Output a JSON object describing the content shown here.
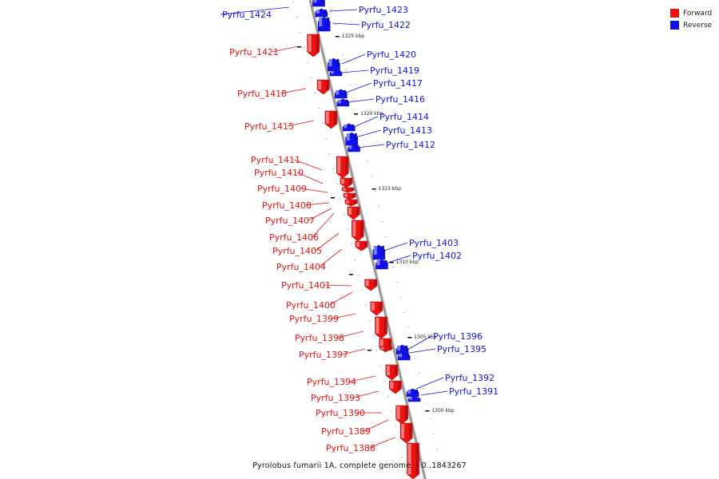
{
  "colors": {
    "forward": "#ee1111",
    "reverse": "#1111ee",
    "backbone": "#999999",
    "tick": "#000000"
  },
  "legend": [
    {
      "label": "Forward",
      "color": "#ee1111"
    },
    {
      "label": "Reverse",
      "color": "#1111ee"
    }
  ],
  "caption": "Pyrolobus fumarii 1A, complete genome. - 0..1843267",
  "kbp_markers": [
    "1325 kbp",
    "1320 kbp",
    "1315 kbp",
    "1310 kbp",
    "1305 kbp",
    "1300 kbp"
  ],
  "genes": [
    {
      "label": "Pyrfu_1424",
      "strand": "reverse"
    },
    {
      "label": "Pyrfu_1423",
      "strand": "reverse"
    },
    {
      "label": "Pyrfu_1422",
      "strand": "reverse"
    },
    {
      "label": "Pyrfu_1421",
      "strand": "forward"
    },
    {
      "label": "Pyrfu_1420",
      "strand": "reverse"
    },
    {
      "label": "Pyrfu_1419",
      "strand": "reverse"
    },
    {
      "label": "Pyrfu_1418",
      "strand": "forward"
    },
    {
      "label": "Pyrfu_1417",
      "strand": "reverse"
    },
    {
      "label": "Pyrfu_1416",
      "strand": "reverse"
    },
    {
      "label": "Pyrfu_1415",
      "strand": "forward"
    },
    {
      "label": "Pyrfu_1414",
      "strand": "reverse"
    },
    {
      "label": "Pyrfu_1413",
      "strand": "reverse"
    },
    {
      "label": "Pyrfu_1412",
      "strand": "reverse"
    },
    {
      "label": "Pyrfu_1411",
      "strand": "forward"
    },
    {
      "label": "Pyrfu_1410",
      "strand": "forward"
    },
    {
      "label": "Pyrfu_1409",
      "strand": "forward"
    },
    {
      "label": "Pyrfu_1408",
      "strand": "forward"
    },
    {
      "label": "Pyrfu_1407",
      "strand": "forward"
    },
    {
      "label": "Pyrfu_1406",
      "strand": "forward"
    },
    {
      "label": "Pyrfu_1405",
      "strand": "forward"
    },
    {
      "label": "Pyrfu_1404",
      "strand": "forward"
    },
    {
      "label": "Pyrfu_1403",
      "strand": "reverse"
    },
    {
      "label": "Pyrfu_1402",
      "strand": "reverse"
    },
    {
      "label": "Pyrfu_1401",
      "strand": "forward"
    },
    {
      "label": "Pyrfu_1400",
      "strand": "forward"
    },
    {
      "label": "Pyrfu_1399",
      "strand": "forward"
    },
    {
      "label": "Pyrfu_1398",
      "strand": "forward"
    },
    {
      "label": "Pyrfu_1397",
      "strand": "forward"
    },
    {
      "label": "Pyrfu_1396",
      "strand": "reverse"
    },
    {
      "label": "Pyrfu_1395",
      "strand": "reverse"
    },
    {
      "label": "Pyrfu_1394",
      "strand": "forward"
    },
    {
      "label": "Pyrfu_1393",
      "strand": "forward"
    },
    {
      "label": "Pyrfu_1392",
      "strand": "reverse"
    },
    {
      "label": "Pyrfu_1391",
      "strand": "reverse"
    },
    {
      "label": "Pyrfu_1390",
      "strand": "forward"
    },
    {
      "label": "Pyrfu_1389",
      "strand": "forward"
    },
    {
      "label": "Pyrfu_1388",
      "strand": "forward"
    }
  ]
}
